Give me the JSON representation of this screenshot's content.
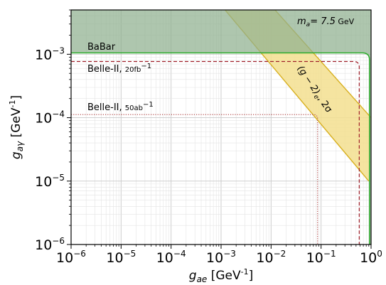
{
  "chart_data": {
    "type": "line",
    "xlabel": {
      "main": "g",
      "sub": "ae",
      "unit": " [GeV",
      "exp": "-1",
      "close": "]"
    },
    "ylabel": {
      "main": "g",
      "sub": "aγ",
      "unit": " [GeV",
      "exp": "-1",
      "close": "]"
    },
    "xscale": "log",
    "yscale": "log",
    "xlim": [
      1e-06,
      1
    ],
    "ylim": [
      1e-06,
      0.005
    ],
    "grid": true,
    "x_ticks": [
      {
        "base": "10",
        "exp": "−6",
        "value": 1e-06
      },
      {
        "base": "10",
        "exp": "−5",
        "value": 1e-05
      },
      {
        "base": "10",
        "exp": "−4",
        "value": 0.0001
      },
      {
        "base": "10",
        "exp": "−3",
        "value": 0.001
      },
      {
        "base": "10",
        "exp": "−2",
        "value": 0.01
      },
      {
        "base": "10",
        "exp": "−1",
        "value": 0.1
      },
      {
        "base": "10",
        "exp": "0",
        "value": 1
      }
    ],
    "y_ticks": [
      {
        "base": "10",
        "exp": "−6",
        "value": 1e-06
      },
      {
        "base": "10",
        "exp": "−5",
        "value": 1e-05
      },
      {
        "base": "10",
        "exp": "−4",
        "value": 0.0001
      },
      {
        "base": "10",
        "exp": "−3",
        "value": 0.001
      }
    ],
    "annotation_mass": {
      "m": "m",
      "sub": "a",
      "rest": "= 7.5",
      "unit": "GeV"
    },
    "annotation_g2": {
      "main": "(g − 2)",
      "sub": "e",
      "rest": ", 2σ"
    },
    "series": [
      {
        "label": "BaBar",
        "kind": "excluded-region",
        "color": "#22aa22",
        "fill": "#8fb08f",
        "horizontal_limit": 0.00105,
        "vertical_limit": 0.93,
        "label_sub": ""
      },
      {
        "label": "Belle-II, ",
        "label_sub": "20fb",
        "label_sup": "−1",
        "kind": "projected-dashed",
        "color": "#a0202a",
        "horizontal_limit": 0.00077,
        "vertical_limit": 0.58
      },
      {
        "label": "Belle-II, ",
        "label_sub": "50ab",
        "label_sup": "−1",
        "kind": "projected-dotted",
        "color": "#b04040",
        "horizontal_limit": 0.000112,
        "vertical_limit": 0.085
      },
      {
        "label": "(g−2)e, 2σ",
        "kind": "band",
        "color": "#d8b020",
        "fill": "#f3df8f",
        "upper_edge": [
          [
            0.0012,
            0.005
          ],
          [
            0.9,
            1e-05
          ]
        ],
        "lower_edge": [
          [
            0.012,
            0.005
          ],
          [
            1.0,
            0.0001
          ]
        ]
      }
    ]
  }
}
